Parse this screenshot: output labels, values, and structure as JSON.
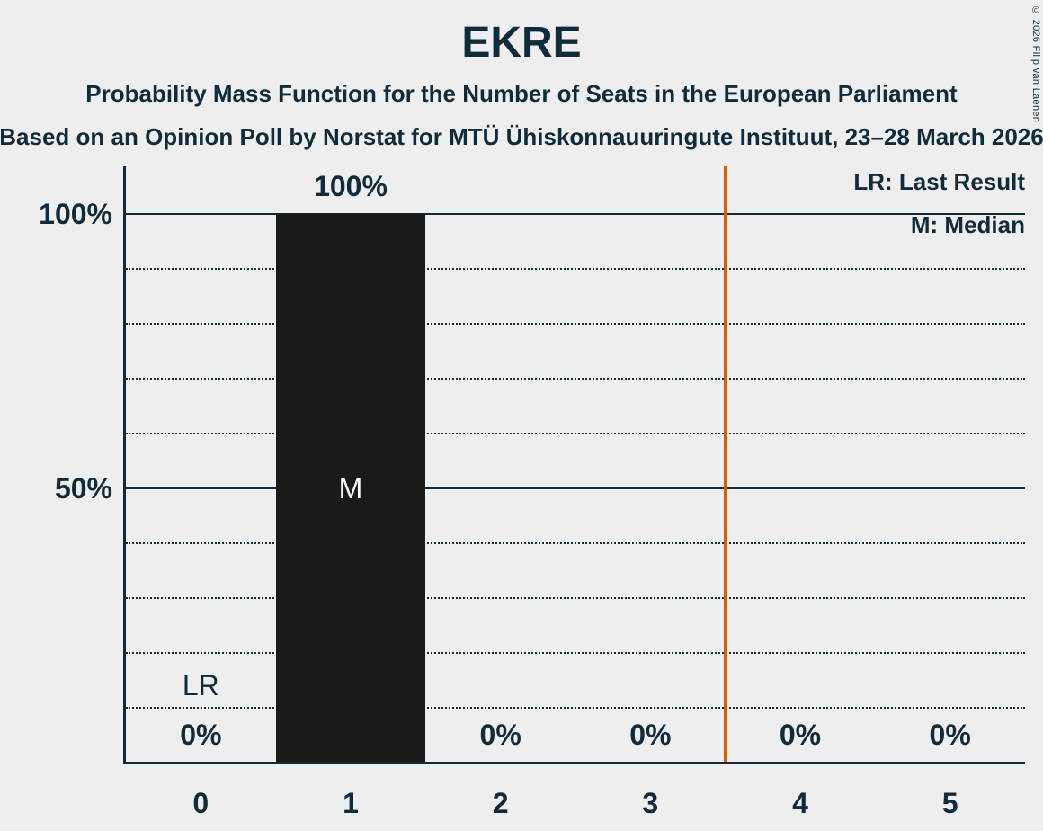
{
  "header": {
    "title": "EKRE",
    "subtitle_line1": "Probability Mass Function for the Number of Seats in the European Parliament",
    "subtitle_line2": "Based on an Opinion Poll by Norstat for MTÜ Ühiskonnauuringute Instituut, 23–28 March 2026",
    "copyright": "© 2026 Filip van Laenen"
  },
  "legend": {
    "last_result_label": "LR: Last Result",
    "median_label": "M: Median"
  },
  "chart_data": {
    "type": "bar",
    "title": "EKRE",
    "categories": [
      "0",
      "1",
      "2",
      "3",
      "4",
      "5"
    ],
    "values": [
      0,
      100,
      0,
      0,
      0,
      0
    ],
    "value_labels": [
      "0%",
      "100%",
      "0%",
      "0%",
      "0%",
      "0%"
    ],
    "ylim": [
      0,
      100
    ],
    "y_ticks": [
      {
        "value": 100,
        "label": "100%"
      },
      {
        "value": 50,
        "label": "50%"
      }
    ],
    "dotted_gridlines": [
      10,
      20,
      30,
      40,
      60,
      70,
      80,
      90
    ],
    "solid_gridlines": [
      50,
      100
    ],
    "median": {
      "index": 1,
      "marker": "M"
    },
    "last_result": {
      "index": 0,
      "marker": "LR"
    },
    "threshold_line_at": 3.5,
    "legend_position": "top-right",
    "grid": true,
    "colors": {
      "background": "#eeeeee",
      "bar": "#1a1a18",
      "text": "#0f2b3c",
      "median_marker": "#ffffff",
      "threshold_line": "#d45f00"
    }
  }
}
